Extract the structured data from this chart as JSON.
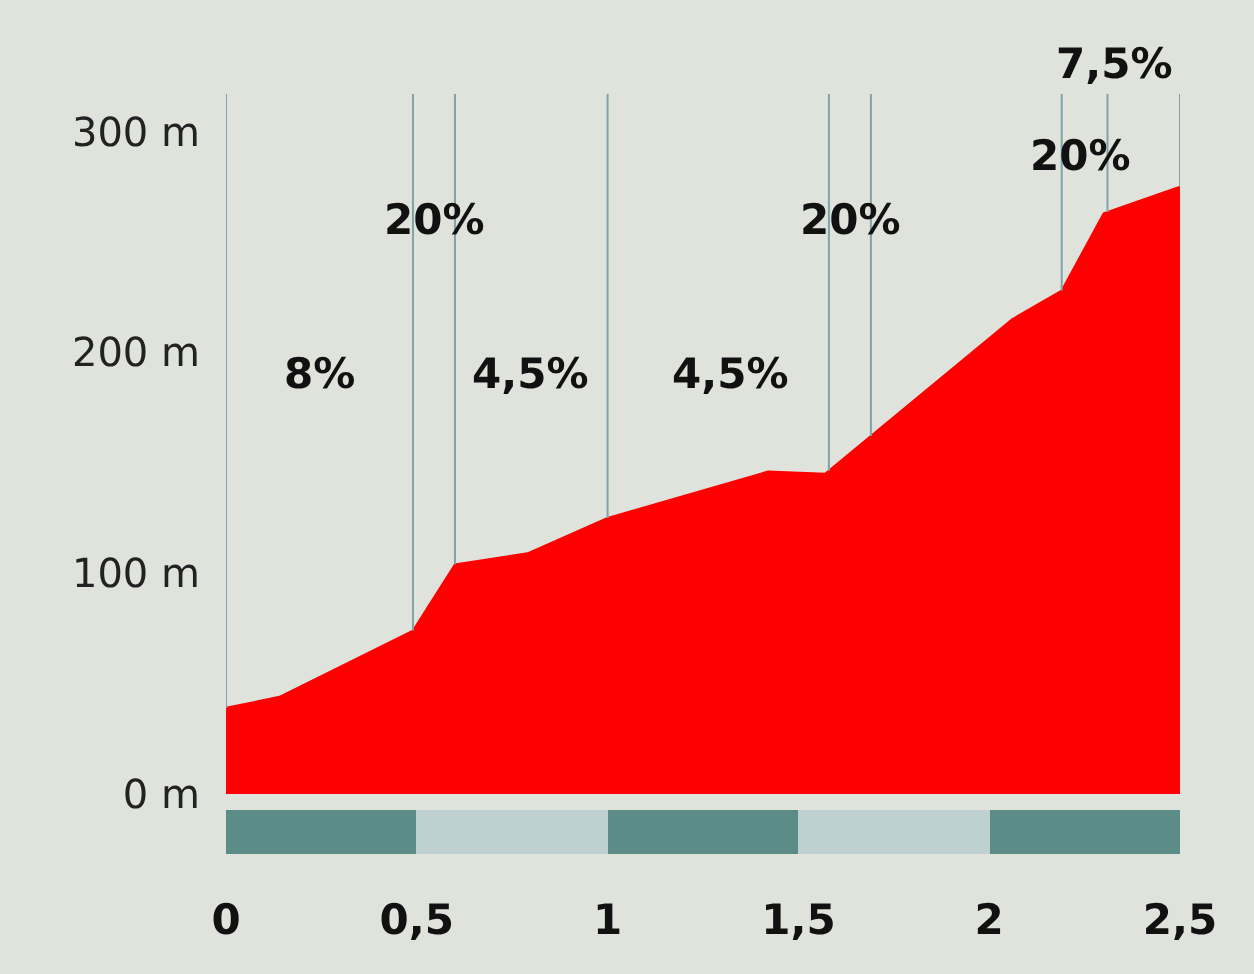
{
  "chart_data": {
    "type": "area",
    "x": [
      0,
      0.14,
      0.28,
      0.49,
      0.6,
      0.79,
      1.0,
      1.42,
      1.57,
      2.06,
      2.19,
      2.3,
      2.5
    ],
    "series": [
      {
        "color": "#ff0000",
        "values": [
          39,
          44,
          56,
          74,
          104,
          109,
          125,
          146,
          145,
          215,
          228,
          263,
          275
        ]
      }
    ],
    "xlim": [
      0,
      2.5
    ],
    "xticks": [
      0,
      {
        "value": 0.5,
        "label": "0,5"
      },
      1,
      {
        "value": 1.5,
        "label": "1,5"
      },
      2,
      {
        "value": 2.5,
        "label": "2,5"
      }
    ],
    "ylim": [
      0,
      317
    ],
    "yticks": [
      {
        "value": 0,
        "label": "0 m"
      },
      {
        "value": 100,
        "label": "100 m"
      },
      {
        "value": 200,
        "label": "200 m"
      },
      {
        "value": 300,
        "label": "300 m"
      }
    ],
    "grid": false,
    "ref_lines": [
      {
        "axis": "x",
        "value": 0,
        "color": "#7fa3a8"
      },
      {
        "axis": "x",
        "value": 0.49,
        "color": "#7fa3a8"
      },
      {
        "axis": "x",
        "value": 0.6,
        "color": "#7fa3a8"
      },
      {
        "axis": "x",
        "value": 1.0,
        "color": "#7fa3a8"
      },
      {
        "axis": "x",
        "value": 1.58,
        "color": "#7fa3a8"
      },
      {
        "axis": "x",
        "value": 1.69,
        "color": "#7fa3a8"
      },
      {
        "axis": "x",
        "value": 2.19,
        "color": "#7fa3a8"
      },
      {
        "axis": "x",
        "value": 2.31,
        "color": "#7fa3a8"
      },
      {
        "axis": "x",
        "value": 2.5,
        "color": "#7fa3a8"
      }
    ],
    "annotations": [
      "8%",
      "20%",
      "4,5%",
      "4,5%",
      "20%",
      "20%",
      "7,5%"
    ]
  }
}
